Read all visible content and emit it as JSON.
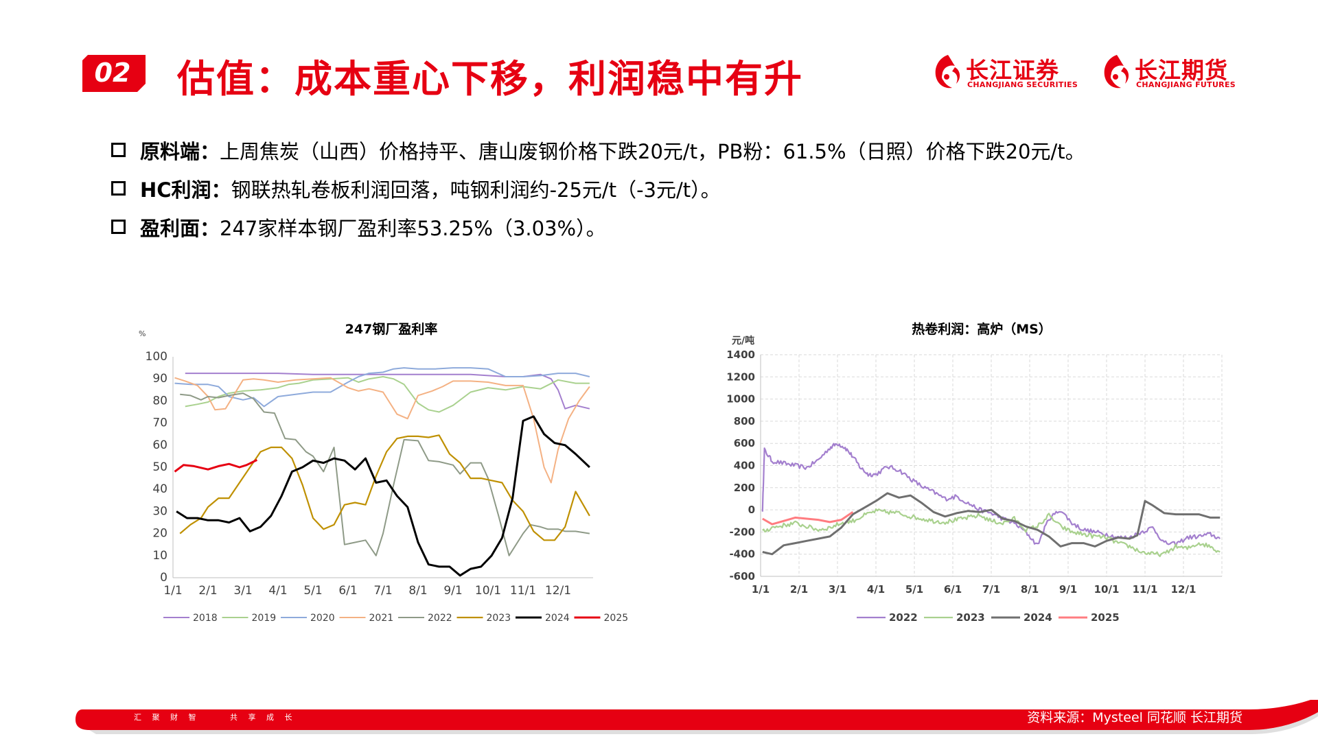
{
  "header": {
    "badge": "02",
    "title": "估值：成本重心下移，利润稳中有升",
    "logo1_cn": "长江证券",
    "logo1_en": "CHANGJIANG SECURITIES",
    "logo2_cn": "长江期货",
    "logo2_en": "CHANGJIANG FUTURES"
  },
  "bullets": [
    {
      "label": "原料端：",
      "text": "上周焦炭（山西）价格持平、唐山废钢价格下跌20元/t，PB粉：61.5%（日照）价格下跌20元/t。"
    },
    {
      "label": "HC利润：",
      "text": "钢联热轧卷板利润回落，吨钢利润约-25元/t（-3元/t）。"
    },
    {
      "label": "盈利面：",
      "text": "247家样本钢厂盈利率53.25%（3.03%）。"
    }
  ],
  "footer": {
    "slogan": [
      "汇 聚 财 智",
      "共 享 成 长"
    ],
    "source": "资料来源：Mysteel  同花顺   长江期货"
  },
  "chart_data": [
    {
      "type": "line",
      "title": "247钢厂盈利率",
      "ylabel": "%",
      "ylim": [
        0,
        100
      ],
      "yticks": [
        0,
        10,
        20,
        30,
        40,
        50,
        60,
        70,
        80,
        90,
        100
      ],
      "xlim": [
        0,
        12
      ],
      "xtick_labels": [
        "1/1",
        "2/1",
        "3/1",
        "4/1",
        "5/1",
        "6/1",
        "7/1",
        "8/1",
        "9/1",
        "10/1",
        "11/1",
        "12/1"
      ],
      "grid": false,
      "legend": "bottom",
      "series": [
        {
          "name": "2018",
          "color": "#a37fce",
          "width": 2,
          "x": [
            0.35,
            1,
            2,
            3,
            4,
            5,
            6,
            7,
            8,
            8.5,
            9,
            9.5,
            10,
            10.5,
            10.8,
            11,
            11.2,
            11.5,
            11.9
          ],
          "y": [
            92.5,
            92.5,
            92.5,
            92.5,
            92,
            92,
            92,
            92,
            92,
            92,
            91.5,
            91,
            91,
            92,
            90,
            85,
            76.5,
            78,
            76.5
          ]
        },
        {
          "name": "2019",
          "color": "#a9d18e",
          "width": 2,
          "x": [
            0.35,
            0.7,
            1,
            1.3,
            1.6,
            2,
            2.5,
            3,
            3.3,
            3.6,
            4,
            4.5,
            5,
            5.3,
            5.6,
            6,
            6.3,
            6.6,
            7,
            7.3,
            7.6,
            8,
            8.5,
            9,
            9.5,
            10,
            10.5,
            11,
            11.5,
            11.9
          ],
          "y": [
            77.5,
            78.5,
            79.5,
            82,
            83.5,
            84.5,
            85,
            86,
            87.5,
            88,
            89.5,
            90,
            90.5,
            88.5,
            90,
            91,
            90,
            87.5,
            79,
            76,
            75,
            78,
            84,
            86,
            85,
            86.5,
            85.5,
            89.5,
            88,
            88
          ]
        },
        {
          "name": "2020",
          "color": "#8eaadb",
          "width": 2,
          "x": [
            0.05,
            0.5,
            1,
            1.3,
            1.6,
            2,
            2.3,
            2.6,
            3,
            3.5,
            4,
            4.5,
            5,
            5.3,
            5.6,
            6,
            6.3,
            6.6,
            7,
            7.5,
            8,
            8.5,
            9,
            9.5,
            10,
            10.5,
            11,
            11.5,
            11.9
          ],
          "y": [
            88,
            87.5,
            87.5,
            86.5,
            82,
            80.5,
            81.5,
            77.5,
            82,
            83,
            84,
            84,
            88.5,
            91,
            92.5,
            93,
            94.5,
            95,
            94.5,
            94.5,
            95,
            95,
            94.5,
            91,
            91,
            91.5,
            92.5,
            92.5,
            91
          ]
        },
        {
          "name": "2021",
          "color": "#f4b183",
          "width": 2,
          "x": [
            0.05,
            0.35,
            0.7,
            1,
            1.2,
            1.5,
            2,
            2.3,
            2.6,
            3,
            3.5,
            4,
            4.5,
            5,
            5.3,
            5.6,
            6,
            6.4,
            6.7,
            7,
            7.4,
            7.7,
            8,
            8.5,
            9,
            9.5,
            10,
            10.3,
            10.6,
            10.8,
            11,
            11.3,
            11.6,
            11.9
          ],
          "y": [
            90.5,
            89,
            87,
            82,
            76,
            76.5,
            89.5,
            90,
            89.5,
            88.5,
            89.5,
            90,
            90.5,
            86,
            84.5,
            85.5,
            84,
            74,
            72,
            82.5,
            84.5,
            86.5,
            89,
            89,
            88.5,
            87,
            87,
            72,
            50,
            43,
            58,
            72,
            80,
            86.5
          ]
        },
        {
          "name": "2022",
          "color": "#a5a5a5",
          "width": 2,
          "stroke": "#8e9a87",
          "x": [
            0.2,
            0.5,
            0.8,
            1,
            1.3,
            1.6,
            2,
            2.3,
            2.6,
            2.9,
            3.2,
            3.5,
            3.8,
            4,
            4.3,
            4.6,
            4.9,
            5.2,
            5.5,
            5.8,
            6,
            6.3,
            6.6,
            7,
            7.3,
            7.6,
            8,
            8.2,
            8.5,
            8.8,
            9,
            9.3,
            9.6,
            10,
            10.2,
            10.5,
            10.7,
            11,
            11.2,
            11.5,
            11.9
          ],
          "y": [
            83,
            82.5,
            80.5,
            82,
            81.5,
            82.5,
            83.5,
            81,
            75,
            74.5,
            63,
            62.5,
            57,
            55,
            48,
            59,
            15,
            16,
            17,
            10,
            20,
            42,
            62.5,
            62,
            53,
            52.5,
            51,
            47,
            52,
            52,
            45,
            28,
            10,
            20,
            24,
            23,
            22,
            22,
            21,
            21,
            20
          ]
        },
        {
          "name": "2023",
          "color": "#bf9000",
          "width": 2.2,
          "x": [
            0.2,
            0.5,
            0.8,
            1,
            1.3,
            1.6,
            1.9,
            2.2,
            2.5,
            2.8,
            3.1,
            3.4,
            3.7,
            4,
            4.3,
            4.6,
            4.9,
            5.2,
            5.5,
            5.8,
            6.1,
            6.4,
            6.7,
            7,
            7.3,
            7.6,
            7.9,
            8.2,
            8.5,
            8.8,
            9.1,
            9.4,
            9.7,
            10,
            10.3,
            10.6,
            10.9,
            11.2,
            11.5,
            11.9
          ],
          "y": [
            20,
            24,
            27,
            32,
            36,
            36,
            43,
            50,
            57,
            59,
            59,
            54,
            42,
            27,
            22,
            24,
            33,
            34,
            33,
            46,
            57,
            63,
            64,
            64,
            63.5,
            64.5,
            56,
            52,
            45,
            45,
            44,
            43,
            35,
            30,
            21,
            17,
            17,
            23,
            39,
            28
          ]
        },
        {
          "name": "2024",
          "color": "#000000",
          "width": 3,
          "x": [
            0.1,
            0.4,
            0.7,
            1,
            1.3,
            1.6,
            1.9,
            2.2,
            2.5,
            2.8,
            3.1,
            3.4,
            3.7,
            4,
            4.3,
            4.6,
            4.9,
            5.2,
            5.5,
            5.8,
            6.1,
            6.4,
            6.7,
            7,
            7.3,
            7.6,
            7.9,
            8.2,
            8.5,
            8.8,
            9.1,
            9.4,
            9.7,
            10,
            10.3,
            10.6,
            10.9,
            11.2,
            11.5,
            11.9
          ],
          "y": [
            30,
            27,
            27,
            26,
            26,
            25,
            27,
            21,
            23,
            28,
            37,
            48,
            50,
            53,
            52,
            54,
            53,
            49,
            54,
            43,
            44,
            37,
            32,
            16,
            6,
            5,
            5,
            1,
            4,
            5,
            10,
            18,
            36,
            71,
            73,
            65,
            61,
            60,
            56,
            50
          ]
        },
        {
          "name": "2025",
          "color": "#e60012",
          "width": 3,
          "x": [
            0.05,
            0.3,
            0.6,
            1,
            1.3,
            1.6,
            1.9,
            2.1,
            2.4
          ],
          "y": [
            48,
            51,
            50.5,
            49,
            50.5,
            51.5,
            50,
            51,
            53.3
          ]
        }
      ]
    },
    {
      "type": "line",
      "title": "热卷利润：高炉（MS）",
      "ylabel": "元/吨",
      "ylim": [
        -600,
        1400
      ],
      "yticks": [
        -600,
        -400,
        -200,
        0,
        200,
        400,
        600,
        800,
        1000,
        1200,
        1400
      ],
      "xlim": [
        0,
        12
      ],
      "xtick_labels": [
        "1/1",
        "2/1",
        "3/1",
        "4/1",
        "5/1",
        "6/1",
        "7/1",
        "8/1",
        "9/1",
        "10/1",
        "11/1",
        "12/1"
      ],
      "grid": true,
      "legend": "bottom",
      "series": [
        {
          "name": "2022",
          "color": "#a37fce",
          "width": 2.2,
          "noisy": true,
          "x": [
            0.05,
            0.1,
            0.3,
            0.6,
            0.9,
            1.2,
            1.5,
            1.8,
            2,
            2.2,
            2.4,
            2.6,
            2.8,
            3,
            3.3,
            3.6,
            3.9,
            4.2,
            4.5,
            4.8,
            5.1,
            5.4,
            5.7,
            6,
            6.3,
            6.6,
            6.9,
            7.2,
            7.5,
            7.8,
            8.1,
            8.4,
            8.7,
            9,
            9.3,
            9.6,
            9.9,
            10.2,
            10.5,
            10.8,
            11.1,
            11.4,
            11.7,
            11.95
          ],
          "y": [
            0,
            540,
            440,
            420,
            400,
            380,
            450,
            560,
            600,
            560,
            480,
            380,
            320,
            320,
            390,
            360,
            280,
            210,
            160,
            100,
            120,
            60,
            0,
            -30,
            -80,
            -120,
            -200,
            -320,
            -80,
            0,
            -120,
            -180,
            -200,
            -220,
            -250,
            -250,
            -200,
            -160,
            -300,
            -310,
            -250,
            -240,
            -220,
            -260
          ]
        },
        {
          "name": "2023",
          "color": "#a9d18e",
          "width": 2.2,
          "noisy": true,
          "x": [
            0.05,
            0.3,
            0.6,
            0.9,
            1.2,
            1.5,
            1.8,
            2.1,
            2.4,
            2.7,
            3,
            3.3,
            3.6,
            3.9,
            4.2,
            4.5,
            4.8,
            5.1,
            5.4,
            5.7,
            6,
            6.3,
            6.6,
            6.9,
            7.2,
            7.5,
            7.8,
            8.1,
            8.4,
            8.7,
            9,
            9.3,
            9.6,
            9.9,
            10.2,
            10.5,
            10.8,
            11.1,
            11.4,
            11.7,
            11.95
          ],
          "y": [
            -200,
            -160,
            -140,
            -120,
            -150,
            -180,
            -160,
            -120,
            -100,
            -50,
            -10,
            -20,
            -30,
            -60,
            -80,
            -100,
            -110,
            -90,
            -70,
            -50,
            -100,
            -120,
            -80,
            -180,
            -150,
            -50,
            -150,
            -200,
            -220,
            -240,
            -250,
            -300,
            -330,
            -380,
            -400,
            -400,
            -330,
            -350,
            -300,
            -330,
            -380
          ]
        },
        {
          "name": "2024",
          "color": "#6f6f6f",
          "width": 3,
          "x": [
            0.05,
            0.3,
            0.6,
            0.9,
            1.2,
            1.5,
            1.8,
            2.1,
            2.4,
            2.7,
            3,
            3.3,
            3.6,
            3.9,
            4.2,
            4.5,
            4.8,
            5.1,
            5.4,
            5.7,
            6,
            6.3,
            6.6,
            6.9,
            7.2,
            7.5,
            7.8,
            8.1,
            8.4,
            8.7,
            9,
            9.3,
            9.6,
            9.8,
            10,
            10.2,
            10.5,
            10.8,
            11.1,
            11.4,
            11.7,
            11.95
          ],
          "y": [
            -380,
            -400,
            -320,
            -300,
            -280,
            -260,
            -240,
            -160,
            -40,
            20,
            80,
            150,
            110,
            130,
            60,
            -20,
            -60,
            -30,
            -10,
            -20,
            0,
            -80,
            -100,
            -150,
            -180,
            -240,
            -330,
            -300,
            -300,
            -330,
            -280,
            -250,
            -260,
            -230,
            80,
            40,
            -30,
            -40,
            -40,
            -40,
            -70,
            -70
          ]
        },
        {
          "name": "2025",
          "color": "#ff7c80",
          "width": 3,
          "x": [
            0.05,
            0.3,
            0.6,
            0.9,
            1.2,
            1.5,
            1.8,
            2.1,
            2.4
          ],
          "y": [
            -80,
            -130,
            -100,
            -70,
            -80,
            -90,
            -110,
            -90,
            -20
          ]
        }
      ]
    }
  ]
}
